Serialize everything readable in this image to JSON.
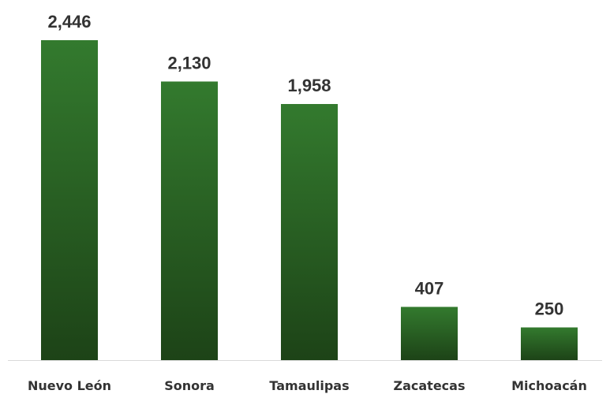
{
  "chart_data": {
    "type": "bar",
    "categories": [
      "Nuevo León",
      "Sonora",
      "Tamaulipas",
      "Zacatecas",
      "Michoacán"
    ],
    "values": [
      2446,
      2130,
      1958,
      407,
      250
    ],
    "value_labels": [
      "2,446",
      "2,130",
      "1,958",
      "407",
      "250"
    ],
    "title": "",
    "xlabel": "",
    "ylabel": "",
    "ylim": [
      0,
      2446
    ],
    "grid": false,
    "legend": "none",
    "colors": {
      "bar_top": "#337a2e",
      "bar_bottom": "#1d4317",
      "text": "#333333",
      "baseline": "#d9d9d9"
    }
  }
}
